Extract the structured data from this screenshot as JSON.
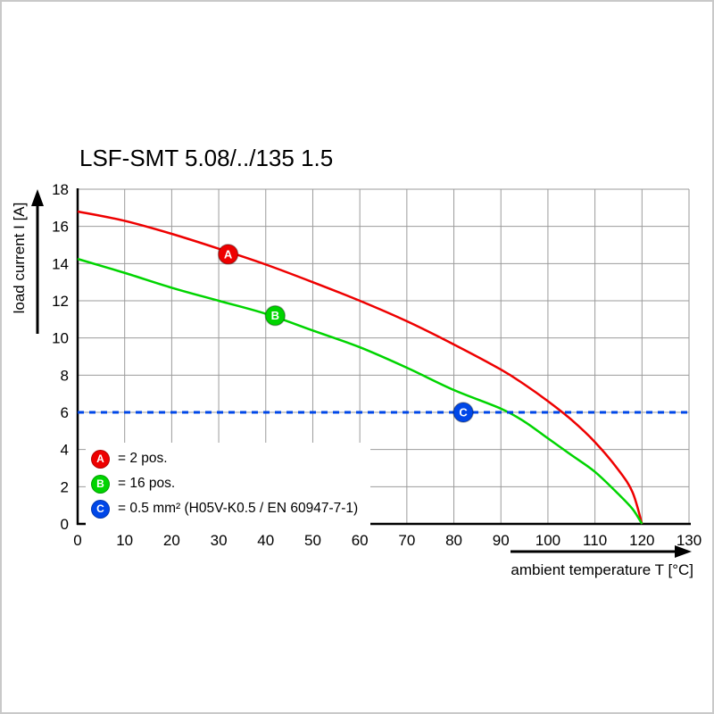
{
  "page": {
    "background": "#ffffff",
    "frame_color": "#c9c9c9"
  },
  "chart_data": {
    "type": "line",
    "title": "LSF-SMT 5.08/../135 1.5",
    "xlabel": "ambient temperature T [°C]",
    "ylabel": "load current I [A]",
    "xlim": [
      0,
      130
    ],
    "ylim": [
      0,
      18
    ],
    "x_ticks": [
      0,
      10,
      20,
      30,
      40,
      50,
      60,
      70,
      80,
      90,
      100,
      110,
      120,
      130
    ],
    "y_ticks": [
      0,
      2,
      4,
      6,
      8,
      10,
      12,
      14,
      16,
      18
    ],
    "grid": true,
    "grid_color": "#9b9b9b",
    "axis_color": "#000000",
    "legend_position": "bottom-left-inside",
    "series": [
      {
        "name": "A",
        "legend_label": "= 2 pos.",
        "color": "#ee0000",
        "style": "solid",
        "points": [
          [
            0,
            16.8
          ],
          [
            10,
            16.3
          ],
          [
            20,
            15.6
          ],
          [
            30,
            14.8
          ],
          [
            40,
            13.95
          ],
          [
            50,
            13.0
          ],
          [
            60,
            12.0
          ],
          [
            70,
            10.9
          ],
          [
            80,
            9.65
          ],
          [
            90,
            8.3
          ],
          [
            95,
            7.5
          ],
          [
            100,
            6.6
          ],
          [
            105,
            5.6
          ],
          [
            110,
            4.4
          ],
          [
            115,
            2.9
          ],
          [
            118,
            1.7
          ],
          [
            120,
            0
          ]
        ]
      },
      {
        "name": "B",
        "legend_label": "= 16 pos.",
        "color": "#00d400",
        "style": "solid",
        "points": [
          [
            0,
            14.25
          ],
          [
            10,
            13.5
          ],
          [
            20,
            12.7
          ],
          [
            30,
            12.0
          ],
          [
            40,
            11.3
          ],
          [
            50,
            10.4
          ],
          [
            60,
            9.5
          ],
          [
            70,
            8.4
          ],
          [
            80,
            7.2
          ],
          [
            90,
            6.2
          ],
          [
            95,
            5.5
          ],
          [
            100,
            4.6
          ],
          [
            105,
            3.7
          ],
          [
            110,
            2.8
          ],
          [
            115,
            1.6
          ],
          [
            118,
            0.8
          ],
          [
            120,
            0
          ]
        ]
      },
      {
        "name": "C",
        "legend_label": "= 0.5 mm² (H05V-K0.5 / EN 60947-7-1)",
        "color": "#0047e8",
        "style": "dashed",
        "points": [
          [
            0,
            6
          ],
          [
            130,
            6
          ]
        ]
      }
    ],
    "markers": [
      {
        "series": "A",
        "label": "A",
        "x": 32,
        "y": 14.5,
        "color": "#ee0000"
      },
      {
        "series": "B",
        "label": "B",
        "x": 42,
        "y": 11.2,
        "color": "#00d400"
      },
      {
        "series": "C",
        "label": "C",
        "x": 82,
        "y": 6,
        "color": "#0047e8"
      }
    ]
  }
}
